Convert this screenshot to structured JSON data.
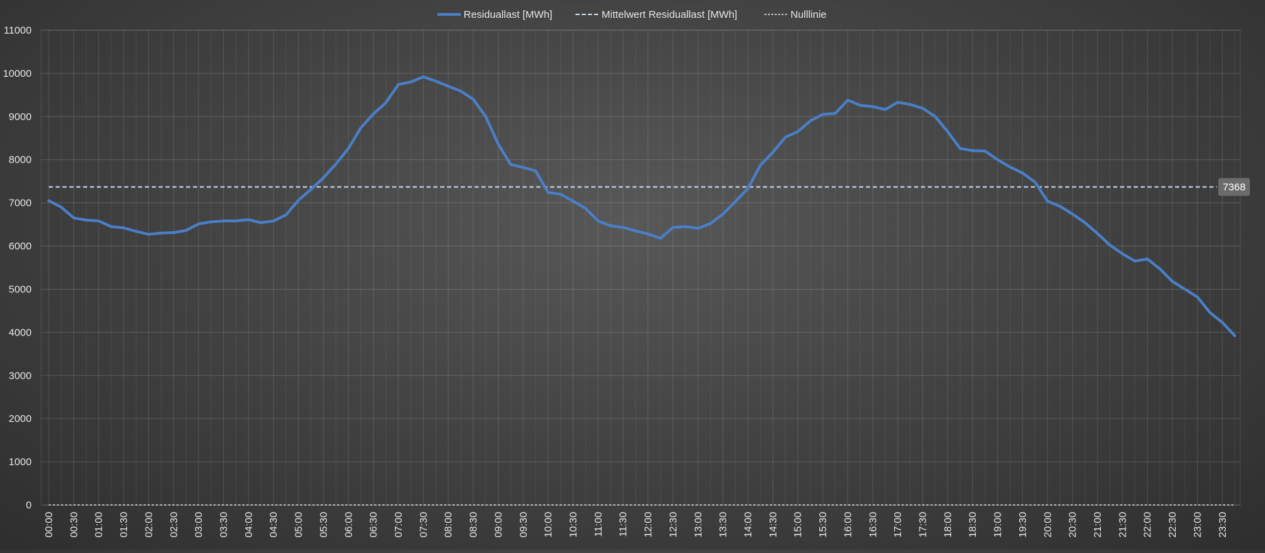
{
  "chart_data": {
    "type": "line",
    "title": "",
    "xlabel": "",
    "ylabel": "",
    "ylim": [
      0,
      11000
    ],
    "yticks": [
      0,
      1000,
      2000,
      3000,
      4000,
      5000,
      6000,
      7000,
      8000,
      9000,
      10000,
      11000
    ],
    "grid": true,
    "legend_position": "top-center",
    "x_tick_labels": [
      "00:00",
      "00:30",
      "01:00",
      "01:30",
      "02:00",
      "02:30",
      "03:00",
      "03:30",
      "04:00",
      "04:30",
      "05:00",
      "05:30",
      "06:00",
      "06:30",
      "07:00",
      "07:30",
      "08:00",
      "08:30",
      "09:00",
      "09:30",
      "10:00",
      "10:30",
      "11:00",
      "11:30",
      "12:00",
      "12:30",
      "13:00",
      "13:30",
      "14:00",
      "14:30",
      "15:00",
      "15:30",
      "16:00",
      "16:30",
      "17:00",
      "17:30",
      "18:00",
      "18:30",
      "19:00",
      "19:30",
      "20:00",
      "20:30",
      "21:00",
      "21:30",
      "22:00",
      "22:30",
      "23:00",
      "23:30"
    ],
    "x_interval_minutes": 15,
    "series": [
      {
        "name": "Residuallast [MWh]",
        "color": "#4a7fc8",
        "style": "solid",
        "values": [
          7050,
          6900,
          6650,
          6600,
          6580,
          6450,
          6420,
          6340,
          6270,
          6300,
          6310,
          6360,
          6510,
          6560,
          6580,
          6580,
          6610,
          6540,
          6580,
          6720,
          7060,
          7310,
          7580,
          7900,
          8260,
          8740,
          9060,
          9320,
          9740,
          9800,
          9920,
          9820,
          9700,
          9590,
          9400,
          9000,
          8360,
          7890,
          7820,
          7740,
          7240,
          7200,
          7040,
          6870,
          6580,
          6470,
          6430,
          6350,
          6280,
          6180,
          6430,
          6450,
          6410,
          6520,
          6740,
          7030,
          7330,
          7870,
          8170,
          8520,
          8650,
          8900,
          9050,
          9070,
          9380,
          9260,
          9230,
          9160,
          9330,
          9280,
          9190,
          9000,
          8650,
          8260,
          8210,
          8200,
          8000,
          7830,
          7690,
          7480,
          7040,
          6920,
          6740,
          6540,
          6290,
          6020,
          5820,
          5650,
          5700,
          5470,
          5180,
          5000,
          4820,
          4460,
          4230,
          3920
        ]
      },
      {
        "name": "Mittelwert Residuallast [MWh]",
        "color": "#c8daf2",
        "style": "dashed",
        "value": 7368
      },
      {
        "name": "Nulllinie",
        "color": "#ffffff",
        "style": "dotted",
        "value": 0
      }
    ],
    "annotations": [
      {
        "text": "7368",
        "target": "Mittelwert Residuallast [MWh]"
      }
    ]
  }
}
